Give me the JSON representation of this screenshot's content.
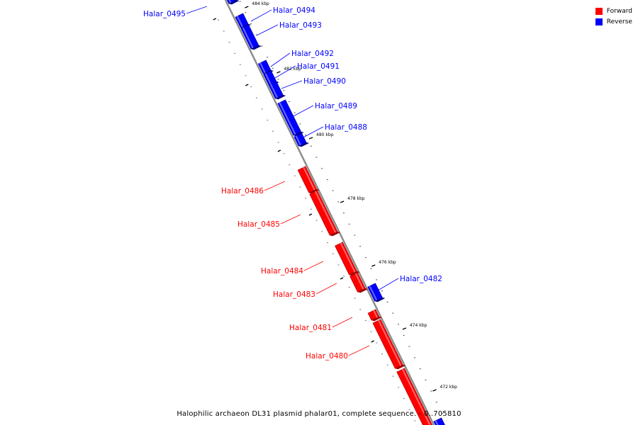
{
  "colors": {
    "forward": "#ff0000",
    "reverse": "#0000ff",
    "backbone": "#8c8c8c"
  },
  "legend": [
    {
      "key": "forward",
      "label": "Forward"
    },
    {
      "key": "reverse",
      "label": "Reverse"
    }
  ],
  "caption": "Halophilic archaeon DL31 plasmid phalar01, complete sequence. - 0..705810",
  "ticks": [
    "484 kbp",
    "482 kbp",
    "480 kbp",
    "478 kbp",
    "476 kbp",
    "474 kbp",
    "472 kbp"
  ],
  "genes": [
    {
      "label": "Halar_0495",
      "strand": "reverse"
    },
    {
      "label": "Halar_0494",
      "strand": "reverse"
    },
    {
      "label": "Halar_0493",
      "strand": "reverse"
    },
    {
      "label": "Halar_0492",
      "strand": "reverse"
    },
    {
      "label": "Halar_0491",
      "strand": "reverse"
    },
    {
      "label": "Halar_0490",
      "strand": "reverse"
    },
    {
      "label": "Halar_0489",
      "strand": "reverse"
    },
    {
      "label": "Halar_0488",
      "strand": "reverse"
    },
    {
      "label": "Halar_0486",
      "strand": "forward"
    },
    {
      "label": "Halar_0485",
      "strand": "forward"
    },
    {
      "label": "Halar_0484",
      "strand": "forward"
    },
    {
      "label": "Halar_0483",
      "strand": "forward"
    },
    {
      "label": "Halar_0482",
      "strand": "reverse"
    },
    {
      "label": "Halar_0481",
      "strand": "forward"
    },
    {
      "label": "Halar_0480",
      "strand": "forward"
    }
  ]
}
